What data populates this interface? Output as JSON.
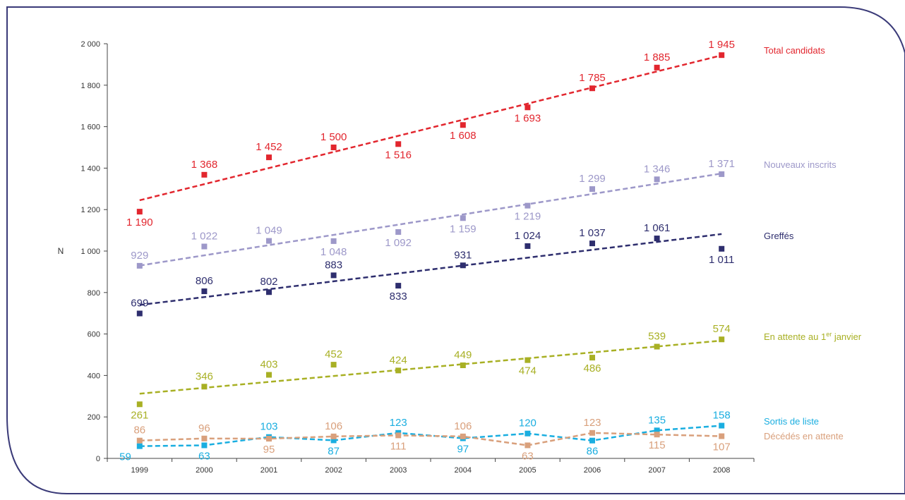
{
  "chart_data": {
    "type": "line",
    "title": "",
    "xlabel": "",
    "ylabel": "N",
    "ylim": [
      0,
      2000
    ],
    "grid": false,
    "legend_placement": "right, at the end of each series",
    "categories": [
      "1999",
      "2000",
      "2001",
      "2002",
      "2003",
      "2004",
      "2005",
      "2006",
      "2007",
      "2008"
    ],
    "y_ticks": [
      {
        "value": 0,
        "label": "0"
      },
      {
        "value": 200,
        "label": "200"
      },
      {
        "value": 400,
        "label": "400"
      },
      {
        "value": 600,
        "label": "600"
      },
      {
        "value": 800,
        "label": "800"
      },
      {
        "value": 1000,
        "label": "1 000"
      },
      {
        "value": 1200,
        "label": "1 200"
      },
      {
        "value": 1400,
        "label": "1 400"
      },
      {
        "value": 1600,
        "label": "1 600"
      },
      {
        "value": 1800,
        "label": "1 800"
      },
      {
        "value": 2000,
        "label": "2 000"
      }
    ],
    "series": [
      {
        "name": "Total candidats",
        "color": "#e2262e",
        "values": [
          1190,
          1368,
          1452,
          1500,
          1516,
          1608,
          1693,
          1785,
          1885,
          1945
        ],
        "labels": [
          "1 190",
          "1 368",
          "1 452",
          "1 500",
          "1 516",
          "1 608",
          "1 693",
          "1 785",
          "1 885",
          "1 945"
        ],
        "label_pos": [
          "below",
          "above",
          "above",
          "above",
          "below",
          "below",
          "below",
          "above",
          "above",
          "above"
        ],
        "line": "trend",
        "trend": [
          1245,
          1944
        ]
      },
      {
        "name": "Nouveaux inscrits",
        "color": "#9d98c9",
        "values": [
          929,
          1022,
          1049,
          1048,
          1092,
          1159,
          1219,
          1299,
          1346,
          1371
        ],
        "labels": [
          "929",
          "1 022",
          "1 049",
          "1 048",
          "1 092",
          "1 159",
          "1 219",
          "1 299",
          "1 346",
          "1 371"
        ],
        "label_pos": [
          "above",
          "above",
          "above",
          "below",
          "below",
          "below",
          "below",
          "above",
          "above",
          "above"
        ],
        "line": "trend",
        "trend": [
          930,
          1374
        ]
      },
      {
        "name": "Greffés",
        "color": "#2e2e6e",
        "values": [
          699,
          806,
          802,
          883,
          833,
          931,
          1024,
          1037,
          1061,
          1011
        ],
        "labels": [
          "699",
          "806",
          "802",
          "883",
          "833",
          "931",
          "1 024",
          "1 037",
          "1 061",
          "1 011"
        ],
        "label_pos": [
          "above",
          "above",
          "above",
          "above",
          "below",
          "above",
          "above",
          "above",
          "above",
          "below"
        ],
        "line": "trend",
        "trend": [
          740,
          1082
        ]
      },
      {
        "name": "En attente au 1",
        "name_sup": "er",
        "name_suffix": " janvier",
        "color": "#a8b024",
        "values": [
          261,
          346,
          403,
          452,
          424,
          449,
          474,
          486,
          539,
          574
        ],
        "labels": [
          "261",
          "346",
          "403",
          "452",
          "424",
          "449",
          "474",
          "486",
          "539",
          "574"
        ],
        "label_pos": [
          "below",
          "above",
          "above",
          "above",
          "above",
          "above",
          "below",
          "below",
          "above",
          "above"
        ],
        "line": "trend",
        "trend": [
          312,
          568
        ]
      },
      {
        "name": "Sortis de liste",
        "color": "#1aaee0",
        "values": [
          59,
          63,
          103,
          87,
          123,
          97,
          120,
          86,
          135,
          158
        ],
        "labels": [
          "59",
          "63",
          "103",
          "87",
          "123",
          "97",
          "120",
          "86",
          "135",
          "158"
        ],
        "label_pos": [
          "left",
          "below",
          "above",
          "below",
          "above",
          "below",
          "above",
          "below",
          "above",
          "above"
        ],
        "line": "connect"
      },
      {
        "name": "Décédés en attente",
        "color": "#d9a07c",
        "values": [
          86,
          96,
          95,
          106,
          111,
          106,
          63,
          123,
          115,
          107
        ],
        "labels": [
          "86",
          "96",
          "95",
          "106",
          "111",
          "106",
          "63",
          "123",
          "115",
          "107"
        ],
        "label_pos": [
          "above",
          "above",
          "below",
          "above",
          "below",
          "above",
          "below",
          "above",
          "below",
          "below"
        ],
        "line": "connect"
      }
    ]
  }
}
